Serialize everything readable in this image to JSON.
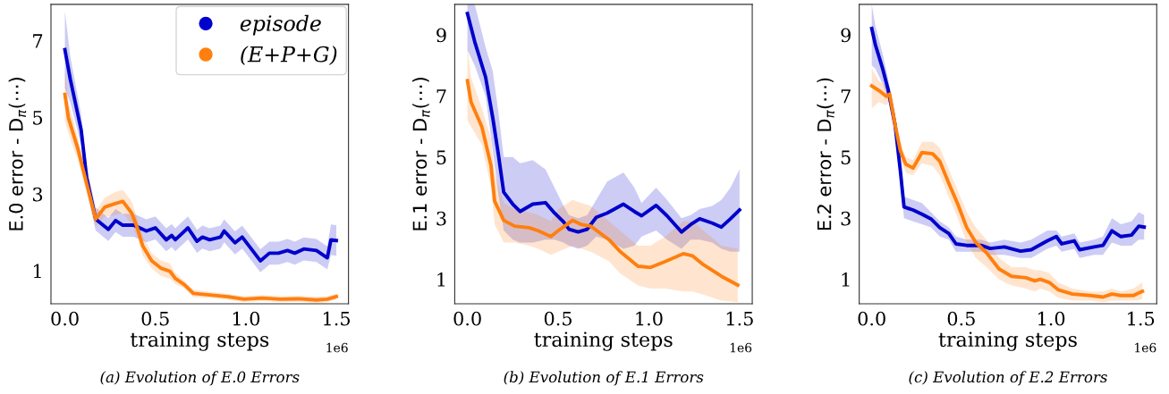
{
  "chart_data": [
    {
      "type": "line",
      "title": "(a) Evolution of E.0 Errors",
      "xlabel": "training steps",
      "ylabel": "E.0 error - D$_{π}$(⋯)",
      "annotations": [
        "1e6"
      ],
      "legend": "top right",
      "grid": false,
      "xlim": [
        -0.077,
        1.567
      ],
      "xticks": [
        {
          "value": 0,
          "label": "0.0"
        },
        {
          "value": 0.5,
          "label": "0.5"
        },
        {
          "value": 1,
          "label": "1.0"
        },
        {
          "value": 1.5,
          "label": "1.5"
        }
      ],
      "ylim": [
        0.14,
        7.95
      ],
      "yticks": [
        1,
        3,
        5,
        7
      ],
      "series": [
        {
          "name": "episode",
          "color": "#0000cc",
          "x": [
            0.0,
            0.03,
            0.09,
            0.12,
            0.17,
            0.24,
            0.28,
            0.32,
            0.38,
            0.45,
            0.5,
            0.56,
            0.59,
            0.61,
            0.68,
            0.73,
            0.76,
            0.8,
            0.86,
            0.88,
            0.94,
            0.98,
            1.03,
            1.08,
            1.13,
            1.18,
            1.23,
            1.27,
            1.32,
            1.39,
            1.45,
            1.47,
            1.5
          ],
          "values": [
            6.77,
            5.99,
            4.67,
            3.43,
            2.35,
            2.08,
            2.31,
            2.19,
            2.19,
            2.04,
            2.12,
            1.81,
            1.92,
            1.81,
            2.12,
            1.77,
            1.88,
            1.81,
            1.88,
            2.04,
            1.73,
            1.88,
            1.57,
            1.26,
            1.46,
            1.46,
            1.53,
            1.46,
            1.57,
            1.53,
            1.34,
            1.81,
            1.79
          ],
          "upper": [
            7.77,
            6.59,
            5.07,
            3.73,
            2.65,
            2.38,
            2.61,
            2.49,
            2.49,
            2.34,
            2.42,
            2.11,
            2.22,
            2.11,
            2.42,
            2.07,
            2.18,
            2.11,
            2.18,
            2.34,
            2.03,
            2.18,
            1.87,
            1.56,
            1.76,
            1.76,
            1.83,
            1.76,
            1.87,
            1.83,
            1.64,
            2.21,
            2.19
          ],
          "lower": [
            5.77,
            5.39,
            4.27,
            3.13,
            2.05,
            1.78,
            2.01,
            1.89,
            1.89,
            1.74,
            1.82,
            1.51,
            1.62,
            1.51,
            1.82,
            1.47,
            1.58,
            1.51,
            1.58,
            1.74,
            1.43,
            1.58,
            1.27,
            0.96,
            1.16,
            1.16,
            1.23,
            1.16,
            1.27,
            1.23,
            1.04,
            1.41,
            1.39
          ]
        },
        {
          "name": "(E+P+G)",
          "color": "#ff7f0e",
          "x": [
            0.0,
            0.02,
            0.07,
            0.12,
            0.17,
            0.22,
            0.27,
            0.32,
            0.37,
            0.4,
            0.43,
            0.48,
            0.53,
            0.58,
            0.61,
            0.66,
            0.71,
            0.8,
            0.89,
            0.99,
            1.09,
            1.19,
            1.29,
            1.39,
            1.45,
            1.5
          ],
          "values": [
            5.6,
            4.98,
            4.21,
            3.28,
            2.35,
            2.66,
            2.74,
            2.81,
            2.5,
            2.12,
            1.65,
            1.26,
            1.07,
            0.99,
            0.8,
            0.64,
            0.41,
            0.37,
            0.33,
            0.26,
            0.29,
            0.26,
            0.27,
            0.24,
            0.26,
            0.33
          ],
          "upper": [
            6.3,
            5.38,
            4.51,
            3.53,
            2.55,
            2.91,
            3.04,
            3.11,
            2.8,
            2.37,
            1.9,
            1.46,
            1.27,
            1.19,
            0.95,
            0.74,
            0.51,
            0.45,
            0.41,
            0.34,
            0.37,
            0.34,
            0.35,
            0.32,
            0.34,
            0.41
          ],
          "lower": [
            4.9,
            4.58,
            3.91,
            3.03,
            2.15,
            2.41,
            2.44,
            2.51,
            2.2,
            1.87,
            1.4,
            1.06,
            0.87,
            0.79,
            0.65,
            0.54,
            0.31,
            0.29,
            0.25,
            0.18,
            0.21,
            0.18,
            0.19,
            0.16,
            0.18,
            0.25
          ]
        }
      ]
    },
    {
      "type": "line",
      "title": "(b) Evolution of E.1 Errors",
      "xlabel": "training steps",
      "ylabel": "E.1 error - D$_{π}$(⋯)",
      "annotations": [
        "1e6"
      ],
      "grid": false,
      "xlim": [
        -0.07,
        1.57
      ],
      "xticks": [
        {
          "value": 0,
          "label": "0.0"
        },
        {
          "value": 0.5,
          "label": "0.5"
        },
        {
          "value": 1,
          "label": "1.0"
        },
        {
          "value": 1.5,
          "label": "1.5"
        }
      ],
      "ylim": [
        0.2,
        10.0
      ],
      "yticks": [
        1,
        3,
        5,
        7,
        9
      ],
      "series": [
        {
          "color": "#0000cc",
          "x": [
            0.0,
            0.04,
            0.1,
            0.14,
            0.17,
            0.2,
            0.25,
            0.29,
            0.36,
            0.43,
            0.48,
            0.53,
            0.56,
            0.61,
            0.66,
            0.71,
            0.77,
            0.86,
            0.92,
            0.96,
            1.04,
            1.1,
            1.18,
            1.23,
            1.28,
            1.35,
            1.4,
            1.45,
            1.5
          ],
          "values": [
            9.7,
            8.78,
            7.62,
            6.27,
            5.11,
            3.85,
            3.46,
            3.22,
            3.46,
            3.51,
            3.17,
            2.88,
            2.64,
            2.55,
            2.64,
            3.03,
            3.17,
            3.46,
            3.22,
            3.08,
            3.42,
            3.08,
            2.55,
            2.79,
            2.98,
            2.84,
            2.71,
            2.98,
            3.27
          ],
          "upper": [
            10.0,
            10.0,
            8.6,
            7.8,
            6.5,
            5.0,
            5.0,
            4.8,
            4.9,
            4.6,
            4.0,
            3.4,
            3.1,
            3.0,
            3.1,
            3.6,
            4.2,
            4.5,
            4.0,
            3.5,
            4.0,
            3.6,
            3.0,
            3.1,
            3.3,
            3.4,
            3.6,
            4.0,
            4.6
          ],
          "lower": [
            8.5,
            8.0,
            7.0,
            5.2,
            3.8,
            2.6,
            2.3,
            2.2,
            2.2,
            2.3,
            2.3,
            2.2,
            2.1,
            2.0,
            2.1,
            2.4,
            2.3,
            2.0,
            2.1,
            2.4,
            2.6,
            2.3,
            2.0,
            2.3,
            2.3,
            2.2,
            2.0,
            1.9,
            1.9
          ]
        },
        {
          "color": "#ff7f0e",
          "x": [
            0.0,
            0.02,
            0.08,
            0.13,
            0.15,
            0.2,
            0.26,
            0.34,
            0.39,
            0.46,
            0.5,
            0.58,
            0.63,
            0.68,
            0.78,
            0.84,
            0.94,
            1.01,
            1.09,
            1.19,
            1.24,
            1.3,
            1.4,
            1.49
          ],
          "values": [
            7.5,
            6.8,
            5.98,
            4.72,
            3.56,
            2.93,
            2.74,
            2.69,
            2.59,
            2.4,
            2.59,
            2.93,
            2.79,
            2.74,
            2.3,
            1.92,
            1.43,
            1.39,
            1.58,
            1.84,
            1.77,
            1.48,
            1.1,
            0.81
          ],
          "upper": [
            8.6,
            7.6,
            6.6,
            5.6,
            4.5,
            3.5,
            3.3,
            3.2,
            3.1,
            2.9,
            3.3,
            3.6,
            3.5,
            3.4,
            2.9,
            2.6,
            2.1,
            2.1,
            2.4,
            2.9,
            2.9,
            2.6,
            2.1,
            2.0
          ],
          "lower": [
            6.2,
            6.0,
            5.4,
            4.0,
            2.8,
            2.2,
            2.2,
            2.1,
            2.0,
            1.8,
            1.9,
            2.1,
            2.0,
            1.9,
            1.6,
            1.2,
            0.8,
            0.7,
            0.7,
            0.6,
            0.6,
            0.5,
            0.3,
            0.25
          ]
        }
      ]
    },
    {
      "type": "line",
      "title": "(c) Evolution of E.2 Errors",
      "xlabel": "training steps",
      "ylabel": "E.2 error - D$_{π}$(⋯)",
      "annotations": [
        "1e6"
      ],
      "grid": false,
      "xlim": [
        -0.07,
        1.59
      ],
      "xticks": [
        {
          "value": 0,
          "label": "0.0"
        },
        {
          "value": 0.5,
          "label": "0.5"
        },
        {
          "value": 1,
          "label": "1.0"
        },
        {
          "value": 1.5,
          "label": "1.5"
        }
      ],
      "ylim": [
        0.2,
        10.0
      ],
      "yticks": [
        1,
        3,
        5,
        7,
        9
      ],
      "series": [
        {
          "color": "#0000cc",
          "x": [
            0.0,
            0.02,
            0.06,
            0.09,
            0.13,
            0.16,
            0.18,
            0.23,
            0.28,
            0.33,
            0.38,
            0.43,
            0.47,
            0.53,
            0.61,
            0.66,
            0.74,
            0.83,
            0.89,
            0.98,
            1.03,
            1.06,
            1.13,
            1.16,
            1.24,
            1.29,
            1.34,
            1.39,
            1.45,
            1.49,
            1.52
          ],
          "values": [
            9.21,
            8.68,
            7.91,
            7.24,
            6.07,
            4.53,
            3.37,
            3.27,
            3.13,
            2.98,
            2.69,
            2.5,
            2.16,
            2.11,
            2.11,
            2.01,
            2.06,
            1.92,
            1.97,
            2.26,
            2.4,
            2.16,
            2.26,
            1.97,
            2.06,
            2.11,
            2.59,
            2.4,
            2.45,
            2.74,
            2.71
          ],
          "upper": [
            10.0,
            9.3,
            8.4,
            7.6,
            6.4,
            4.9,
            3.7,
            3.6,
            3.5,
            3.2,
            2.9,
            2.7,
            2.4,
            2.3,
            2.3,
            2.2,
            2.3,
            2.2,
            2.3,
            2.6,
            2.6,
            2.4,
            2.5,
            2.2,
            2.3,
            2.4,
            3.0,
            2.8,
            2.9,
            3.2,
            3.1
          ],
          "lower": [
            8.0,
            7.9,
            7.4,
            6.9,
            5.7,
            4.2,
            3.0,
            2.9,
            2.8,
            2.7,
            2.4,
            2.3,
            1.9,
            1.9,
            1.9,
            1.8,
            1.8,
            1.7,
            1.7,
            2.0,
            2.1,
            1.9,
            2.0,
            1.7,
            1.8,
            1.8,
            2.2,
            2.1,
            2.1,
            2.3,
            2.3
          ]
        },
        {
          "color": "#ff7f0e",
          "x": [
            0.0,
            0.04,
            0.08,
            0.1,
            0.13,
            0.16,
            0.19,
            0.23,
            0.28,
            0.34,
            0.38,
            0.43,
            0.48,
            0.53,
            0.58,
            0.64,
            0.71,
            0.78,
            0.86,
            0.91,
            0.94,
            0.99,
            1.04,
            1.12,
            1.22,
            1.29,
            1.34,
            1.39,
            1.46,
            1.51
          ],
          "values": [
            7.33,
            7.18,
            6.99,
            7.06,
            6.07,
            5.2,
            4.77,
            4.64,
            5.15,
            5.11,
            4.86,
            4.14,
            3.46,
            2.69,
            2.21,
            1.87,
            1.34,
            1.1,
            1.05,
            0.95,
            1.0,
            0.9,
            0.66,
            0.52,
            0.47,
            0.42,
            0.52,
            0.47,
            0.47,
            0.61
          ],
          "upper": [
            7.9,
            7.5,
            7.3,
            7.3,
            6.3,
            5.5,
            5.0,
            4.9,
            5.5,
            5.5,
            5.3,
            4.6,
            3.9,
            3.2,
            2.7,
            2.3,
            1.7,
            1.4,
            1.4,
            1.3,
            1.3,
            1.2,
            0.9,
            0.7,
            0.6,
            0.6,
            0.7,
            0.6,
            0.7,
            0.9
          ],
          "lower": [
            6.6,
            6.8,
            6.7,
            6.8,
            5.8,
            4.9,
            4.5,
            4.4,
            4.8,
            4.7,
            4.4,
            3.7,
            3.0,
            2.2,
            1.7,
            1.4,
            1.0,
            0.8,
            0.7,
            0.6,
            0.7,
            0.6,
            0.4,
            0.3,
            0.3,
            0.25,
            0.3,
            0.3,
            0.3,
            0.35
          ]
        }
      ]
    }
  ]
}
